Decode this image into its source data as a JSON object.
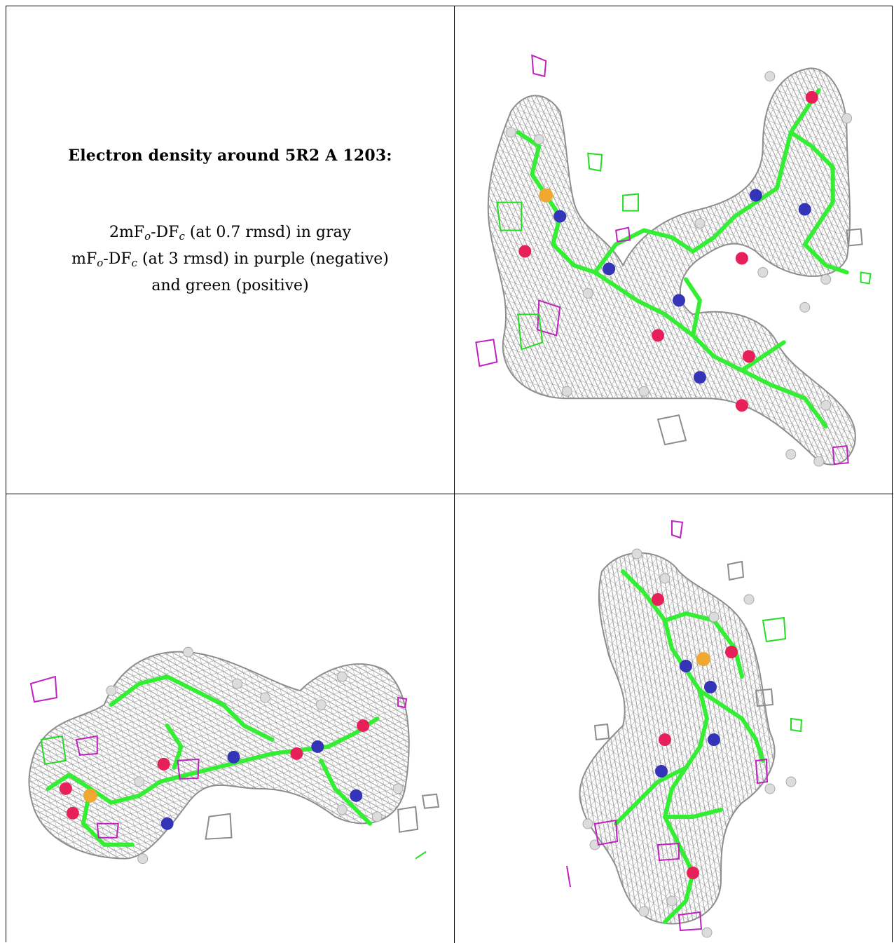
{
  "caption": {
    "title": "Electron density around 5R2 A 1203:",
    "line1_a": "2mF",
    "line1_sub1": "o",
    "line1_b": "-DF",
    "line1_sub2": "c",
    "line1_c": " (at 0.7 rmsd) in gray",
    "line2_a": "mF",
    "line2_sub1": "o",
    "line2_b": "-DF",
    "line2_sub2": "c",
    "line2_c": " (at 3 rmsd) in purple (negative)",
    "line3": "and green (positive)"
  },
  "colors": {
    "mesh_gray": "#8c8c8c",
    "carbon_green": "#33ee33",
    "oxygen_red": "#e8205a",
    "nitrogen_blue": "#3434b8",
    "sulfur_orange": "#f0a830",
    "hydrogen_white": "#dcdcdc",
    "negative_purple": "#c020c0",
    "positive_green": "#22dd22"
  },
  "panels": [
    {
      "name": "view-1",
      "icon": "ligand-density-view-icon"
    },
    {
      "name": "view-2",
      "icon": "ligand-density-view-icon"
    },
    {
      "name": "view-3",
      "icon": "ligand-density-view-icon"
    }
  ]
}
